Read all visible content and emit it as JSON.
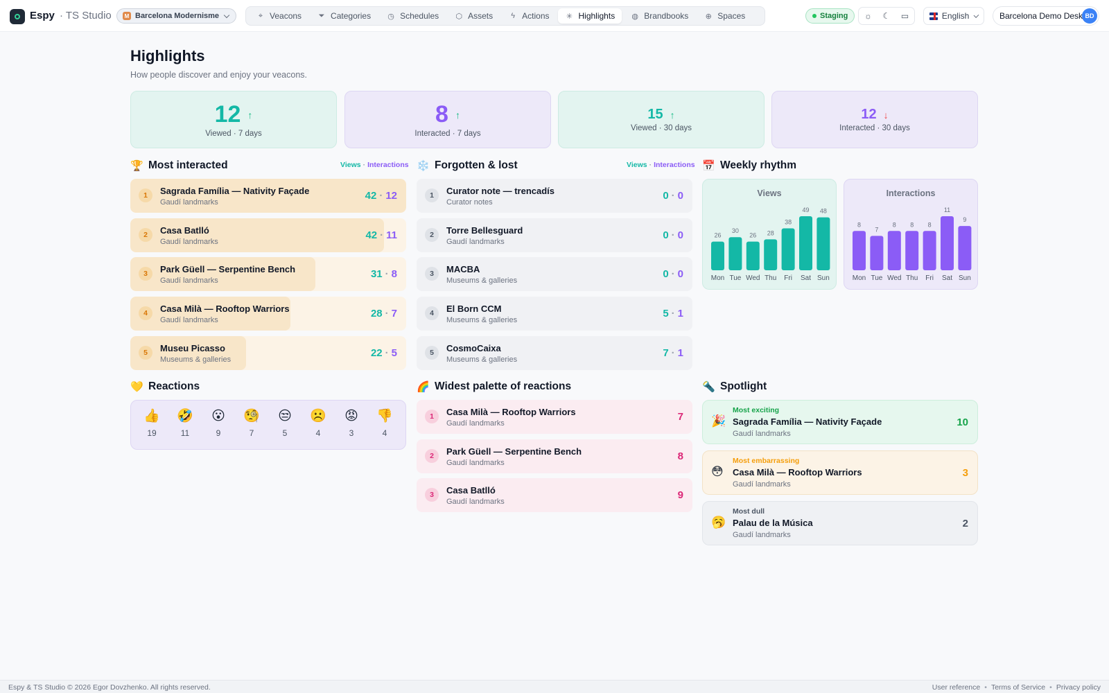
{
  "app": {
    "brand": "Espy",
    "studio": "· TS Studio"
  },
  "site": {
    "initial": "M",
    "name": "Barcelona Modernisme"
  },
  "nav": [
    {
      "label": "Veacons",
      "icon": "pin-icon"
    },
    {
      "label": "Categories",
      "icon": "filter-icon"
    },
    {
      "label": "Schedules",
      "icon": "clock-icon"
    },
    {
      "label": "Assets",
      "icon": "cube-icon"
    },
    {
      "label": "Actions",
      "icon": "bolt-icon"
    },
    {
      "label": "Highlights",
      "icon": "sparkle-icon",
      "active": true
    },
    {
      "label": "Brandbooks",
      "icon": "palette-icon"
    },
    {
      "label": "Spaces",
      "icon": "globe-icon"
    }
  ],
  "env": {
    "label": "Staging"
  },
  "language": {
    "label": "English"
  },
  "user": {
    "name": "Barcelona Demo Desk",
    "initials": "BD"
  },
  "page": {
    "title": "Highlights",
    "subtitle": "How people discover and enjoy your veacons."
  },
  "stats": [
    {
      "value": "12",
      "label": "Viewed · 7 days",
      "trend": "up"
    },
    {
      "value": "8",
      "label": "Interacted · 7 days",
      "trend": "up"
    },
    {
      "value": "15",
      "label": "Viewed · 30 days",
      "trend": "up"
    },
    {
      "value": "12",
      "label": "Interacted · 30 days",
      "trend": "down"
    }
  ],
  "legend": {
    "views": "Views",
    "interactions": "Interactions"
  },
  "most_interacted": {
    "title": "Most interacted",
    "items": [
      {
        "rank": "1",
        "name": "Sagrada Família — Nativity Façade",
        "category": "Gaudí landmarks",
        "views": "42",
        "interactions": "12",
        "fill": 1.0
      },
      {
        "rank": "2",
        "name": "Casa Batlló",
        "category": "Gaudí landmarks",
        "views": "42",
        "interactions": "11",
        "fill": 0.92
      },
      {
        "rank": "3",
        "name": "Park Güell — Serpentine Bench",
        "category": "Gaudí landmarks",
        "views": "31",
        "interactions": "8",
        "fill": 0.67
      },
      {
        "rank": "4",
        "name": "Casa Milà — Rooftop Warriors",
        "category": "Gaudí landmarks",
        "views": "28",
        "interactions": "7",
        "fill": 0.58
      },
      {
        "rank": "5",
        "name": "Museu Picasso",
        "category": "Museums & galleries",
        "views": "22",
        "interactions": "5",
        "fill": 0.42
      }
    ]
  },
  "forgotten": {
    "title": "Forgotten & lost",
    "items": [
      {
        "rank": "1",
        "name": "Curator note — trencadís",
        "category": "Curator notes",
        "views": "0",
        "interactions": "0"
      },
      {
        "rank": "2",
        "name": "Torre Bellesguard",
        "category": "Gaudí landmarks",
        "views": "0",
        "interactions": "0"
      },
      {
        "rank": "3",
        "name": "MACBA",
        "category": "Museums & galleries",
        "views": "0",
        "interactions": "0"
      },
      {
        "rank": "4",
        "name": "El Born CCM",
        "category": "Museums & galleries",
        "views": "5",
        "interactions": "1"
      },
      {
        "rank": "5",
        "name": "CosmoCaixa",
        "category": "Museums & galleries",
        "views": "7",
        "interactions": "1"
      }
    ]
  },
  "weekly": {
    "title": "Weekly rhythm",
    "views_title": "Views",
    "interactions_title": "Interactions",
    "colors": {
      "views": "#14b8a6",
      "interactions": "#8b5cf6"
    }
  },
  "chart_data": [
    {
      "type": "bar",
      "title": "Views",
      "categories": [
        "Mon",
        "Tue",
        "Wed",
        "Thu",
        "Fri",
        "Sat",
        "Sun"
      ],
      "values": [
        26,
        30,
        26,
        28,
        38,
        49,
        48
      ]
    },
    {
      "type": "bar",
      "title": "Interactions",
      "categories": [
        "Mon",
        "Tue",
        "Wed",
        "Thu",
        "Fri",
        "Sat",
        "Sun"
      ],
      "values": [
        8,
        7,
        8,
        8,
        8,
        11,
        9
      ]
    }
  ],
  "reactions": {
    "title": "Reactions",
    "items": [
      {
        "emoji": "👍",
        "count": "19",
        "name": "thumbs-up-icon"
      },
      {
        "emoji": "🤣",
        "count": "11",
        "name": "rofl-icon"
      },
      {
        "emoji": "😮",
        "count": "9",
        "name": "surprised-icon"
      },
      {
        "emoji": "🧐",
        "count": "7",
        "name": "monocle-icon"
      },
      {
        "emoji": "😒",
        "count": "5",
        "name": "unamused-icon"
      },
      {
        "emoji": "☹️",
        "count": "4",
        "name": "frown-icon"
      },
      {
        "emoji": "😡",
        "count": "3",
        "name": "angry-icon"
      },
      {
        "emoji": "👎",
        "count": "4",
        "name": "thumbs-down-icon"
      }
    ]
  },
  "palette": {
    "title": "Widest palette of reactions",
    "items": [
      {
        "rank": "1",
        "name": "Casa Milà — Rooftop Warriors",
        "category": "Gaudí landmarks",
        "count": "7"
      },
      {
        "rank": "2",
        "name": "Park Güell — Serpentine Bench",
        "category": "Gaudí landmarks",
        "count": "8"
      },
      {
        "rank": "3",
        "name": "Casa Batlló",
        "category": "Gaudí landmarks",
        "count": "9"
      }
    ]
  },
  "spotlight": {
    "title": "Spotlight",
    "items": [
      {
        "tag": "Most exciting",
        "name": "Sagrada Família — Nativity Façade",
        "category": "Gaudí landmarks",
        "value": "10",
        "emoji": "🎉",
        "color": "#16a34a"
      },
      {
        "tag": "Most embarrassing",
        "name": "Casa Milà — Rooftop Warriors",
        "category": "Gaudí landmarks",
        "value": "3",
        "emoji": "😳",
        "color": "#f59e0b"
      },
      {
        "tag": "Most dull",
        "name": "Palau de la Música",
        "category": "Gaudí landmarks",
        "value": "2",
        "emoji": "🥱",
        "color": "#4b5563"
      }
    ]
  },
  "footer": {
    "copyright": "Espy & TS Studio © 2026 Egor Dovzhenko. All rights reserved.",
    "links": [
      "User reference",
      "Terms of Service",
      "Privacy policy"
    ]
  }
}
